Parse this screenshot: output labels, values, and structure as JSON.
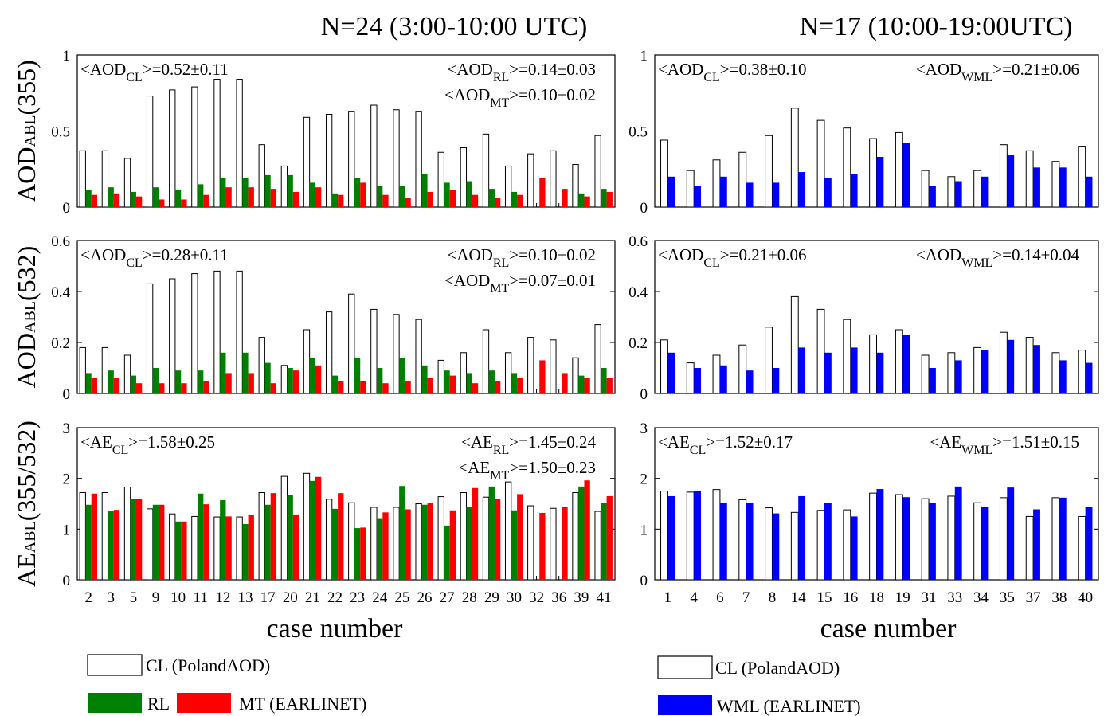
{
  "colors": {
    "CL": "#ffffff",
    "RL": "#008000",
    "MT": "#ff0000",
    "WML": "#0000ff"
  },
  "titles": {
    "left": "N=24 (3:00-10:00 UTC)",
    "right": "N=17 (10:00-19:00UTC)"
  },
  "xlabel": "case number",
  "ylabels": {
    "aod355": [
      "AOD",
      "ABL",
      "(355)"
    ],
    "aod532": [
      "AOD",
      "ABL",
      "(532)"
    ],
    "ae": [
      "AE",
      "ABL",
      "(355/532)"
    ]
  },
  "legend": {
    "left_cl": "CL (PolandAOD)",
    "left_rl": "RL",
    "left_mt": "MT (EARLINET)",
    "right_cl": "CL (PolandAOD)",
    "right_wml": "WML (EARLINET)"
  },
  "chart_data": [
    {
      "type": "bar",
      "panel": "left-aod355",
      "categories": [
        "2",
        "3",
        "5",
        "9",
        "10",
        "11",
        "12",
        "13",
        "17",
        "20",
        "21",
        "22",
        "23",
        "24",
        "25",
        "26",
        "27",
        "28",
        "29",
        "30",
        "32",
        "36",
        "39",
        "41"
      ],
      "ylim": [
        0,
        1
      ],
      "yticks": [
        "0",
        "0.5",
        "1"
      ],
      "ytick_values": [
        0,
        0.5,
        1
      ],
      "series": [
        {
          "name": "CL",
          "values": [
            0.37,
            0.37,
            0.32,
            0.73,
            0.77,
            0.79,
            0.84,
            0.84,
            0.41,
            0.27,
            0.59,
            0.61,
            0.63,
            0.67,
            0.64,
            0.63,
            0.36,
            0.39,
            0.48,
            0.27,
            0.35,
            0.37,
            0.28,
            0.47
          ]
        },
        {
          "name": "RL",
          "values": [
            0.11,
            0.13,
            0.1,
            0.13,
            0.11,
            0.15,
            0.19,
            0.19,
            0.21,
            0.21,
            0.16,
            0.09,
            0.19,
            0.14,
            0.14,
            0.22,
            0.16,
            0.17,
            0.12,
            0.1,
            0,
            0,
            0.09,
            0.12
          ]
        },
        {
          "name": "MT",
          "values": [
            0.08,
            0.09,
            0.07,
            0.05,
            0.05,
            0.08,
            0.13,
            0.13,
            0.12,
            0.1,
            0.13,
            0.08,
            0.16,
            0.08,
            0.06,
            0.1,
            0.11,
            0.08,
            0.06,
            0.08,
            0.19,
            0.12,
            0.07,
            0.1
          ]
        }
      ],
      "annotations": [
        {
          "pre": "<AOD",
          "sub": "CL",
          "post": ">=0.52±0.11",
          "pos": "top-left"
        },
        {
          "pre": "<AOD",
          "sub": "RL",
          "post": ">=0.14±0.03",
          "pos": "top-right"
        },
        {
          "pre": "<AOD",
          "sub": "MT",
          "post": ">=0.10±0.02",
          "pos": "top-right-2"
        }
      ]
    },
    {
      "type": "bar",
      "panel": "right-aod355",
      "categories": [
        "1",
        "4",
        "6",
        "7",
        "8",
        "14",
        "15",
        "16",
        "18",
        "19",
        "31",
        "33",
        "34",
        "35",
        "37",
        "38",
        "40"
      ],
      "ylim": [
        0,
        1
      ],
      "yticks": [
        "0",
        "0.5",
        "1"
      ],
      "ytick_values": [
        0,
        0.5,
        1
      ],
      "series": [
        {
          "name": "CL",
          "values": [
            0.44,
            0.24,
            0.31,
            0.36,
            0.47,
            0.65,
            0.57,
            0.52,
            0.45,
            0.49,
            0.24,
            0.2,
            0.24,
            0.41,
            0.37,
            0.3,
            0.4
          ]
        },
        {
          "name": "WML",
          "values": [
            0.2,
            0.14,
            0.2,
            0.16,
            0.16,
            0.23,
            0.19,
            0.22,
            0.33,
            0.42,
            0.14,
            0.17,
            0.2,
            0.34,
            0.26,
            0.26,
            0.2
          ]
        }
      ],
      "annotations": [
        {
          "pre": "<AOD",
          "sub": "CL",
          "post": ">=0.38±0.10",
          "pos": "top-left"
        },
        {
          "pre": "<AOD",
          "sub": "WML",
          "post": ">=0.21±0.06",
          "pos": "top-right"
        }
      ]
    },
    {
      "type": "bar",
      "panel": "left-aod532",
      "categories": [
        "2",
        "3",
        "5",
        "9",
        "10",
        "11",
        "12",
        "13",
        "17",
        "20",
        "21",
        "22",
        "23",
        "24",
        "25",
        "26",
        "27",
        "28",
        "29",
        "30",
        "32",
        "36",
        "39",
        "41"
      ],
      "ylim": [
        0,
        0.6
      ],
      "yticks": [
        "0",
        "0.2",
        "0.4",
        "0.6"
      ],
      "ytick_values": [
        0,
        0.2,
        0.4,
        0.6
      ],
      "series": [
        {
          "name": "CL",
          "values": [
            0.18,
            0.18,
            0.15,
            0.43,
            0.45,
            0.47,
            0.48,
            0.48,
            0.22,
            0.11,
            0.25,
            0.32,
            0.39,
            0.33,
            0.31,
            0.29,
            0.13,
            0.16,
            0.25,
            0.16,
            0.22,
            0.21,
            0.14,
            0.27
          ]
        },
        {
          "name": "RL",
          "values": [
            0.08,
            0.09,
            0.07,
            0.1,
            0.09,
            0.09,
            0.16,
            0.16,
            0.12,
            0.1,
            0.14,
            0.07,
            0.14,
            0.1,
            0.14,
            0.11,
            0.09,
            0.08,
            0.09,
            0.08,
            0,
            0,
            0.07,
            0.1
          ]
        },
        {
          "name": "MT",
          "values": [
            0.06,
            0.06,
            0.04,
            0.04,
            0.04,
            0.05,
            0.08,
            0.08,
            0.04,
            0.09,
            0.11,
            0.05,
            0.05,
            0.04,
            0.05,
            0.06,
            0.07,
            0.04,
            0.05,
            0.06,
            0.13,
            0.08,
            0.06,
            0.06
          ]
        }
      ],
      "annotations": [
        {
          "pre": "<AOD",
          "sub": "CL",
          "post": ">=0.28±0.11",
          "pos": "top-left"
        },
        {
          "pre": "<AOD",
          "sub": "RL",
          "post": ">=0.10±0.02",
          "pos": "top-right"
        },
        {
          "pre": "<AOD",
          "sub": "MT",
          "post": ">=0.07±0.01",
          "pos": "top-right-2"
        }
      ]
    },
    {
      "type": "bar",
      "panel": "right-aod532",
      "categories": [
        "1",
        "4",
        "6",
        "7",
        "8",
        "14",
        "15",
        "16",
        "18",
        "19",
        "31",
        "33",
        "34",
        "35",
        "37",
        "38",
        "40"
      ],
      "ylim": [
        0,
        0.6
      ],
      "yticks": [
        "0",
        "0.2",
        "0.4",
        "0.6"
      ],
      "ytick_values": [
        0,
        0.2,
        0.4,
        0.6
      ],
      "series": [
        {
          "name": "CL",
          "values": [
            0.21,
            0.12,
            0.15,
            0.19,
            0.26,
            0.38,
            0.33,
            0.29,
            0.23,
            0.25,
            0.15,
            0.16,
            0.18,
            0.24,
            0.22,
            0.16,
            0.17
          ]
        },
        {
          "name": "WML",
          "values": [
            0.16,
            0.1,
            0.11,
            0.09,
            0.1,
            0.18,
            0.16,
            0.18,
            0.16,
            0.23,
            0.1,
            0.13,
            0.17,
            0.21,
            0.19,
            0.13,
            0.12
          ]
        }
      ],
      "annotations": [
        {
          "pre": "<AOD",
          "sub": "CL",
          "post": ">=0.21±0.06",
          "pos": "top-left"
        },
        {
          "pre": "<AOD",
          "sub": "WML",
          "post": ">=0.14±0.04",
          "pos": "top-right"
        }
      ]
    },
    {
      "type": "bar",
      "panel": "left-ae",
      "categories": [
        "2",
        "3",
        "5",
        "9",
        "10",
        "11",
        "12",
        "13",
        "17",
        "20",
        "21",
        "22",
        "23",
        "24",
        "25",
        "26",
        "27",
        "28",
        "29",
        "30",
        "32",
        "36",
        "39",
        "41"
      ],
      "ylim": [
        0,
        3
      ],
      "yticks": [
        "0",
        "1",
        "2",
        "3"
      ],
      "ytick_values": [
        0,
        1,
        2,
        3
      ],
      "series": [
        {
          "name": "CL",
          "values": [
            1.72,
            1.72,
            1.83,
            1.4,
            1.3,
            1.25,
            1.24,
            1.24,
            1.72,
            2.04,
            2.1,
            1.59,
            1.52,
            1.43,
            1.43,
            1.5,
            1.64,
            1.72,
            1.63,
            1.93,
            1.46,
            1.41,
            1.72,
            1.35
          ]
        },
        {
          "name": "RL",
          "values": [
            1.48,
            1.35,
            1.6,
            1.48,
            1.15,
            1.7,
            1.57,
            1.1,
            1.48,
            1.68,
            1.95,
            1.4,
            1.02,
            1.2,
            1.85,
            1.48,
            1.07,
            1.43,
            1.84,
            1.37,
            0,
            0,
            1.84,
            1.51
          ]
        },
        {
          "name": "MT",
          "values": [
            1.7,
            1.38,
            1.6,
            1.48,
            1.15,
            1.49,
            1.25,
            1.28,
            1.71,
            1.29,
            2.03,
            1.71,
            1.03,
            1.33,
            1.39,
            1.51,
            1.37,
            1.81,
            1.59,
            1.69,
            1.32,
            1.43,
            1.96,
            1.65
          ]
        }
      ],
      "annotations": [
        {
          "pre": "<AE",
          "sub": "CL",
          "post": ">=1.58±0.25",
          "pos": "top-left"
        },
        {
          "pre": "<AE",
          "sub": "RL",
          "post": ">=1.45±0.24",
          "pos": "top-right"
        },
        {
          "pre": "<AE",
          "sub": "MT",
          "post": ">=1.50±0.23",
          "pos": "top-right-2"
        }
      ]
    },
    {
      "type": "bar",
      "panel": "right-ae",
      "categories": [
        "1",
        "4",
        "6",
        "7",
        "8",
        "14",
        "15",
        "16",
        "18",
        "19",
        "31",
        "33",
        "34",
        "35",
        "37",
        "38",
        "40"
      ],
      "ylim": [
        0,
        3
      ],
      "yticks": [
        "0",
        "1",
        "2",
        "3"
      ],
      "ytick_values": [
        0,
        1,
        2,
        3
      ],
      "series": [
        {
          "name": "CL",
          "values": [
            1.75,
            1.73,
            1.78,
            1.58,
            1.42,
            1.33,
            1.37,
            1.38,
            1.71,
            1.68,
            1.6,
            1.65,
            1.52,
            1.62,
            1.25,
            1.62,
            1.25
          ]
        },
        {
          "name": "WML",
          "values": [
            1.65,
            1.76,
            1.52,
            1.52,
            1.31,
            1.65,
            1.52,
            1.25,
            1.79,
            1.63,
            1.52,
            1.84,
            1.44,
            1.82,
            1.39,
            1.62,
            1.44
          ]
        }
      ],
      "annotations": [
        {
          "pre": "<AE",
          "sub": "CL",
          "post": ">=1.52±0.17",
          "pos": "top-left"
        },
        {
          "pre": "<AE",
          "sub": "WML",
          "post": ">=1.51±0.15",
          "pos": "top-right"
        }
      ]
    }
  ]
}
